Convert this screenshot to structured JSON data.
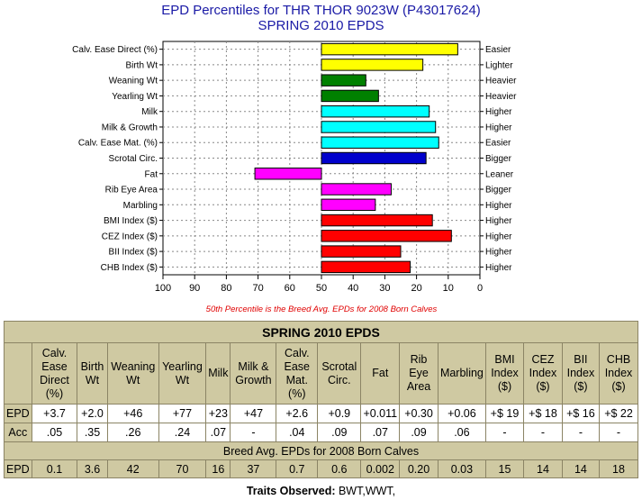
{
  "title": "EPD Percentiles for THR THOR 9023W (P43017624)",
  "subtitle": "SPRING 2010 EPDS",
  "note": "50th Percentile is the Breed Avg. EPDs for 2008 Born Calves",
  "chart_data": {
    "type": "bar",
    "orientation": "horizontal",
    "baseline": 50,
    "xlim": [
      100,
      0
    ],
    "xticks": [
      "100",
      "90",
      "80",
      "70",
      "60",
      "50",
      "40",
      "30",
      "20",
      "10",
      "0"
    ],
    "grid": true,
    "categories": [
      "Calv. Ease Direct (%)",
      "Birth Wt",
      "Weaning Wt",
      "Yearling Wt",
      "Milk",
      "Milk & Growth",
      "Calv. Ease Mat. (%)",
      "Scrotal Circ.",
      "Fat",
      "Rib Eye Area",
      "Marbling",
      "BMI Index ($)",
      "CEZ Index ($)",
      "BII Index ($)",
      "CHB Index ($)"
    ],
    "values": [
      7,
      18,
      36,
      32,
      16,
      14,
      13,
      17,
      71,
      28,
      33,
      15,
      9,
      25,
      22
    ],
    "right_labels": [
      "Easier",
      "Lighter",
      "Heavier",
      "Heavier",
      "Higher",
      "Higher",
      "Easier",
      "Bigger",
      "Leaner",
      "Bigger",
      "Higher",
      "Higher",
      "Higher",
      "Higher",
      "Higher"
    ],
    "colors": [
      "#ffff00",
      "#ffff00",
      "#008000",
      "#008000",
      "#00ffff",
      "#00ffff",
      "#00ffff",
      "#0000cc",
      "#ff00ff",
      "#ff00ff",
      "#ff00ff",
      "#ff0000",
      "#ff0000",
      "#ff0000",
      "#ff0000"
    ]
  },
  "table": {
    "title": "SPRING 2010 EPDS",
    "columns": [
      "Calv. Ease Direct (%)",
      "Birth Wt",
      "Weaning Wt",
      "Yearling Wt",
      "Milk",
      "Milk & Growth",
      "Calv. Ease Mat. (%)",
      "Scrotal Circ.",
      "Fat",
      "Rib Eye Area",
      "Marbling",
      "BMI Index ($)",
      "CEZ Index ($)",
      "BII Index ($)",
      "CHB Index ($)"
    ],
    "epd_label": "EPD",
    "acc_label": "Acc",
    "epd": [
      "+3.7",
      "+2.0",
      "+46",
      "+77",
      "+23",
      "+47",
      "+2.6",
      "+0.9",
      "+0.011",
      "+0.30",
      "+0.06",
      "+$ 19",
      "+$ 18",
      "+$ 16",
      "+$ 22"
    ],
    "acc": [
      ".05",
      ".35",
      ".26",
      ".24",
      ".07",
      "-",
      ".04",
      ".09",
      ".07",
      ".09",
      ".06",
      "-",
      "-",
      "-",
      "-"
    ],
    "breed_avg_title": "Breed Avg. EPDs for 2008 Born Calves",
    "breed_avg": [
      "0.1",
      "3.6",
      "42",
      "70",
      "16",
      "37",
      "0.7",
      "0.6",
      "0.002",
      "0.20",
      "0.03",
      "15",
      "14",
      "14",
      "18"
    ]
  },
  "traits_label": "Traits Observed:",
  "traits_value": " BWT,WWT,"
}
